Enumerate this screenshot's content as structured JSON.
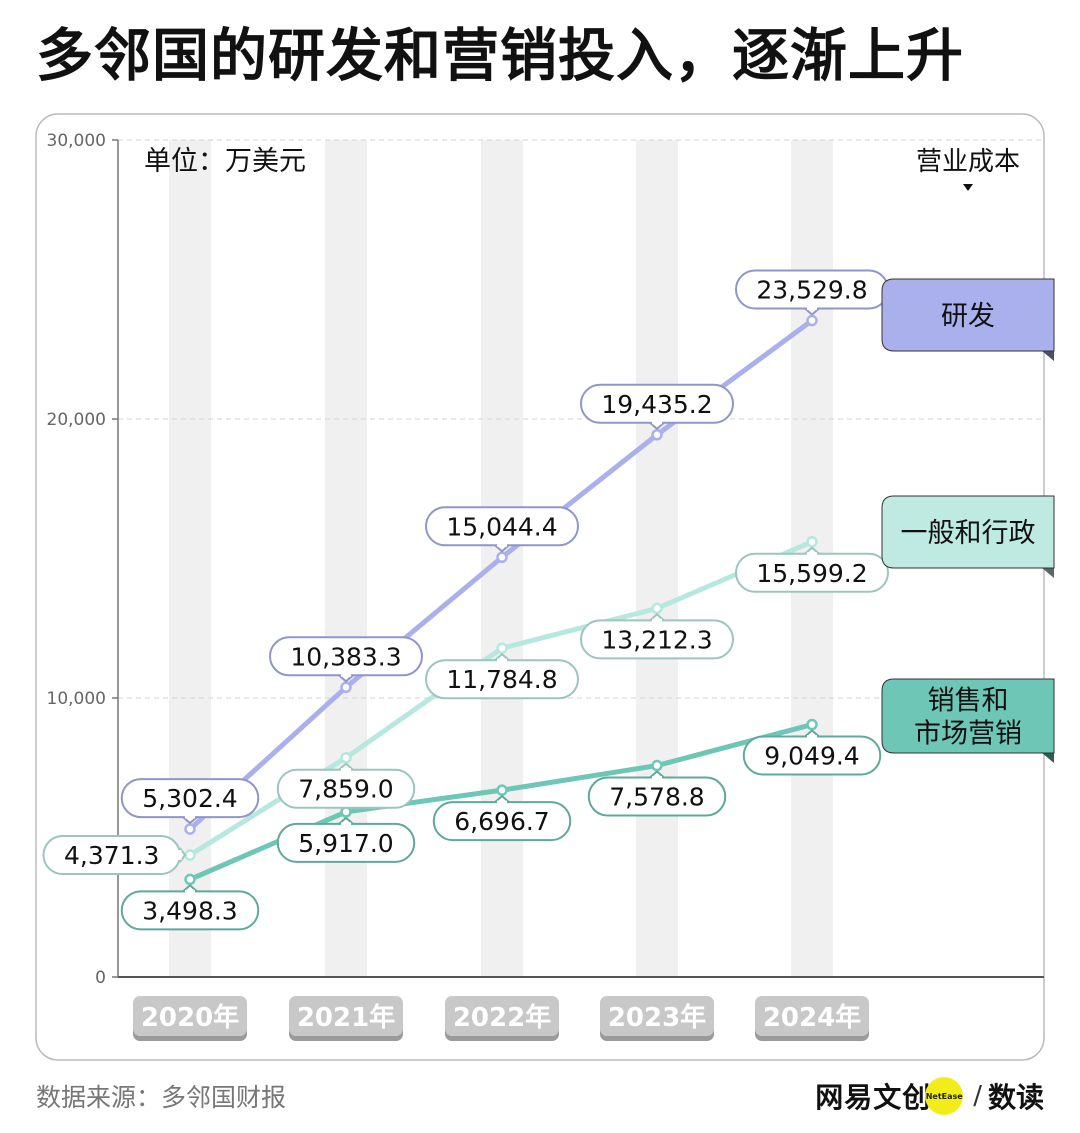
{
  "headline": {
    "pre": "多邻国的",
    "hl_rd": "研发",
    "mid": "和",
    "hl_mk": "营销",
    "post": "投入，逐渐上升"
  },
  "chart_data": {
    "type": "line",
    "unit_label": "单位：万美元",
    "legend_title": "营业成本",
    "categories": [
      "2020年",
      "2021年",
      "2022年",
      "2023年",
      "2024年"
    ],
    "y_ticks": [
      "30,000",
      "20,000",
      "10,000",
      "0"
    ],
    "y_tick_values": [
      30000,
      20000,
      10000,
      0
    ],
    "ylim": [
      0,
      30000
    ],
    "grid": true,
    "series": [
      {
        "name": "研发",
        "values": [
          5302.4,
          10383.3,
          15044.4,
          19435.2,
          23529.8
        ],
        "labels": [
          "5,302.4",
          "10,383.3",
          "15,044.4",
          "19,435.2",
          "23,529.8"
        ],
        "color": "#a9b0ec",
        "fill": "#a9b0ec",
        "label_placement": [
          "above",
          "above",
          "above",
          "above",
          "above"
        ]
      },
      {
        "name": "一般和行政",
        "values": [
          4371.3,
          7859.0,
          11784.8,
          13212.3,
          15599.2
        ],
        "labels": [
          "4,371.3",
          "7,859.0",
          "11,784.8",
          "13,212.3",
          "15,599.2"
        ],
        "color": "#b6e8df",
        "fill": "#bfeae2",
        "label_placement": [
          "left",
          "below",
          "below",
          "below",
          "below"
        ]
      },
      {
        "name": "销售和市场营销",
        "legend_lines": [
          "销售和",
          "市场营销"
        ],
        "values": [
          3498.3,
          5917.0,
          6696.7,
          7578.8,
          9049.4
        ],
        "labels": [
          "3,498.3",
          "5,917.0",
          "6,696.7",
          "7,578.8",
          "9,049.4"
        ],
        "color": "#6ec7b6",
        "fill": "#6ec7b6",
        "label_placement": [
          "below",
          "below",
          "below",
          "below",
          "below"
        ]
      }
    ]
  },
  "footer": {
    "source": "数据来源：多邻国财报",
    "brand_main": "网易文创",
    "brand_dot": "NetEase",
    "brand_slash": "/",
    "brand_sub": "数读"
  }
}
